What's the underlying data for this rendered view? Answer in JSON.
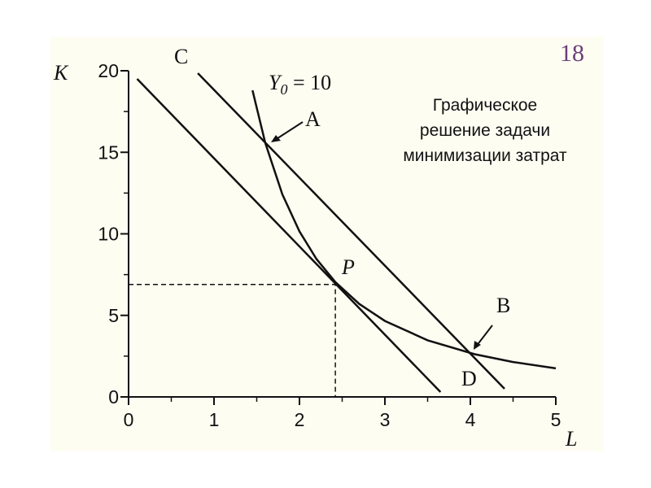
{
  "chart_data": {
    "type": "line",
    "page_number": "18",
    "title_lines": [
      "Графическое",
      "решение задачи",
      "минимизации затрат"
    ],
    "x_label": "L",
    "y_label": "K",
    "xlim": [
      0,
      5
    ],
    "ylim": [
      0,
      20
    ],
    "xticks": [
      0,
      1,
      2,
      3,
      4,
      5
    ],
    "yticks": [
      0,
      5,
      10,
      15,
      20
    ],
    "x_minor_ticks": [
      0.5,
      1.5,
      2.5,
      3.5,
      4.5
    ],
    "y_minor_ticks": [
      2.5,
      7.5,
      12.5,
      17.5
    ],
    "series": [
      {
        "color": "#111111",
        "dashed": false,
        "x": [
          1.45,
          1.6,
          1.8,
          2,
          2.2,
          2.42,
          2.7,
          3,
          3.5,
          4.05,
          4.5,
          5
        ],
        "values": [
          18.8,
          15.57,
          12.42,
          10.15,
          8.45,
          7.04,
          5.7,
          4.66,
          3.47,
          2.62,
          2.14,
          1.75
        ]
      },
      {
        "color": "#111111",
        "dashed": false,
        "x": [
          0.1,
          3.65
        ],
        "values": [
          19.5,
          0.3
        ]
      },
      {
        "color": "#111111",
        "dashed": false,
        "x": [
          0.81,
          4.4
        ],
        "values": [
          19.85,
          0.5
        ]
      },
      {
        "color": "#111111",
        "dashed": true,
        "x": [
          0,
          2.42,
          2.42
        ],
        "values": [
          6.9,
          6.9,
          0
        ]
      }
    ],
    "isoquant_label": {
      "main": "Y",
      "sub": "0",
      "rest": " = 10"
    },
    "point_labels": [
      "C",
      "A",
      "P",
      "B",
      "D"
    ]
  }
}
